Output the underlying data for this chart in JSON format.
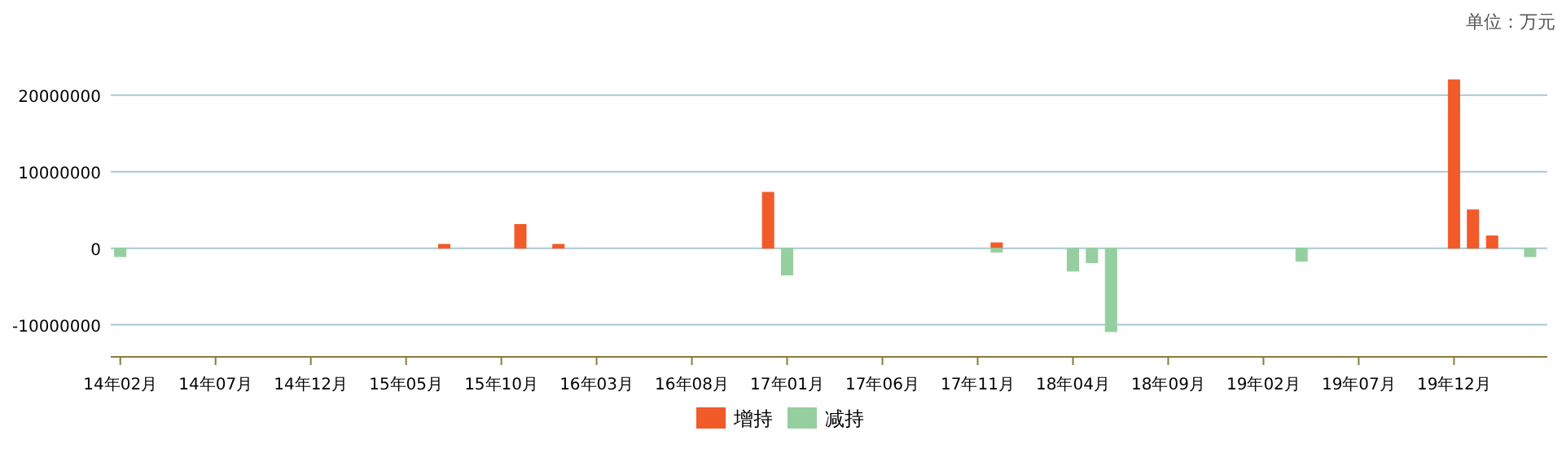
{
  "chart_data": {
    "type": "bar",
    "annotations": [
      "单位：万元"
    ],
    "categories": [
      "14年02月",
      null,
      null,
      null,
      null,
      "14年07月",
      null,
      null,
      null,
      null,
      "14年12月",
      null,
      null,
      null,
      null,
      "15年05月",
      null,
      null,
      null,
      null,
      "15年10月",
      null,
      null,
      null,
      null,
      "16年03月",
      null,
      null,
      null,
      null,
      "16年08月",
      null,
      null,
      null,
      null,
      "17年01月",
      null,
      null,
      null,
      null,
      "17年06月",
      null,
      null,
      null,
      null,
      "17年11月",
      null,
      null,
      null,
      null,
      "18年04月",
      null,
      null,
      null,
      null,
      "18年09月",
      null,
      null,
      null,
      null,
      "19年02月",
      null,
      null,
      null,
      null,
      "19年07月",
      null,
      null,
      null,
      null,
      "19年12月",
      null,
      null,
      null,
      null
    ],
    "series": [
      {
        "name": "增持",
        "color": "#f15a29",
        "values": [
          null,
          null,
          null,
          null,
          null,
          null,
          null,
          null,
          null,
          null,
          null,
          null,
          null,
          null,
          null,
          null,
          null,
          500000,
          null,
          null,
          null,
          3100000,
          null,
          500000,
          null,
          null,
          null,
          null,
          null,
          null,
          null,
          null,
          null,
          null,
          7300000,
          null,
          null,
          null,
          null,
          null,
          null,
          null,
          null,
          null,
          null,
          null,
          700000,
          null,
          null,
          null,
          null,
          null,
          null,
          null,
          null,
          null,
          null,
          null,
          null,
          null,
          null,
          null,
          null,
          null,
          null,
          null,
          null,
          null,
          null,
          null,
          22000000,
          5000000,
          1600000,
          null,
          null
        ]
      },
      {
        "name": "减持",
        "color": "#95cf9f",
        "values": [
          -1100000,
          null,
          null,
          null,
          null,
          null,
          null,
          null,
          null,
          null,
          null,
          null,
          null,
          null,
          null,
          null,
          null,
          null,
          null,
          null,
          null,
          null,
          null,
          null,
          null,
          null,
          null,
          null,
          null,
          null,
          null,
          null,
          null,
          null,
          null,
          -3500000,
          null,
          null,
          null,
          null,
          null,
          null,
          null,
          null,
          null,
          null,
          -500000,
          null,
          null,
          null,
          -3000000,
          -1900000,
          -10900000,
          null,
          null,
          null,
          null,
          null,
          null,
          null,
          null,
          null,
          -1700000,
          null,
          null,
          null,
          null,
          null,
          null,
          null,
          null,
          null,
          null,
          null,
          -1100000
        ]
      }
    ],
    "ylim": [
      -14200000,
      22000000
    ],
    "yticks": [
      -10000000,
      0,
      10000000,
      20000000
    ],
    "grid": "y",
    "legend": "bottom"
  }
}
